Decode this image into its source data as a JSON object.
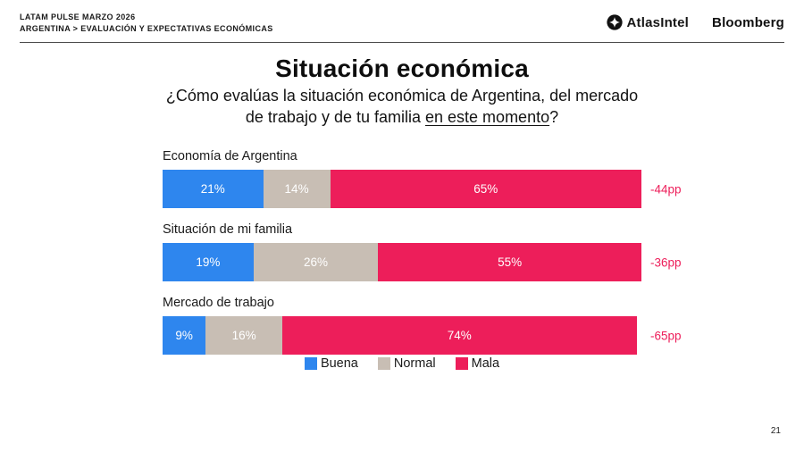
{
  "header": {
    "line1": "LATAM PULSE MARZO 2026",
    "line2": "ARGENTINA > EVALUACIÓN Y EXPECTATIVAS ECONÓMICAS",
    "brand_atlas": "AtlasIntel",
    "brand_bloomberg": "Bloomberg"
  },
  "title": "Situación económica",
  "subtitle_prefix": "¿Cómo evalúas la situación económica de Argentina, del mercado de trabajo y de tu familia ",
  "subtitle_underlined": "en este momento",
  "subtitle_suffix": "?",
  "page_number": "21",
  "colors": {
    "buena": "#2E86EE",
    "normal": "#C8BEB4",
    "mala": "#ED1E5A",
    "net_label": "#ED1E5A",
    "divider": "#4a4a4a"
  },
  "chart_data": {
    "type": "bar",
    "orientation": "horizontal-stacked",
    "unit": "%",
    "categories": [
      "Economía de Argentina",
      "Situación de mi familia",
      "Mercado de trabajo"
    ],
    "series": [
      {
        "name": "Buena",
        "color": "#2E86EE",
        "values": [
          21,
          19,
          9
        ]
      },
      {
        "name": "Normal",
        "color": "#C8BEB4",
        "values": [
          14,
          26,
          16
        ]
      },
      {
        "name": "Mala",
        "color": "#ED1E5A",
        "values": [
          65,
          55,
          74
        ]
      }
    ],
    "net_labels": [
      "-44pp",
      "-36pp",
      "-65pp"
    ],
    "legend": [
      "Buena",
      "Normal",
      "Mala"
    ],
    "legend_position": "bottom",
    "xlim": [
      0,
      100
    ],
    "grid": false
  }
}
